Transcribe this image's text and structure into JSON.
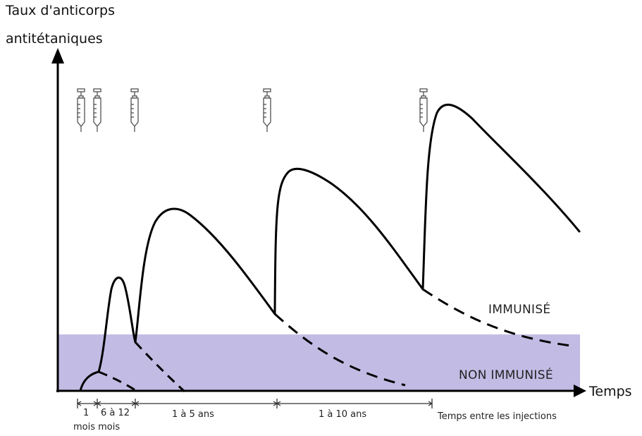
{
  "y_axis_label": [
    "Taux d'anticorps",
    "antitétaniques"
  ],
  "x_axis_label": "Temps",
  "zones": {
    "above": "IMMUNISÉ",
    "below": "NON IMMUNISÉ"
  },
  "intervals": [
    {
      "label": "1"
    },
    {
      "label": "6 à 12"
    },
    {
      "label": "1 à 5 ans"
    },
    {
      "label": "1 à 10 ans"
    }
  ],
  "interval_units": "mois mois",
  "x_caption": "Temps entre les injections",
  "injection_icon": "syringe-icon",
  "injection_count": 5,
  "colors": {
    "non_immune_band": "#c2bce4",
    "curve": "#000000",
    "axis": "#000000"
  }
}
